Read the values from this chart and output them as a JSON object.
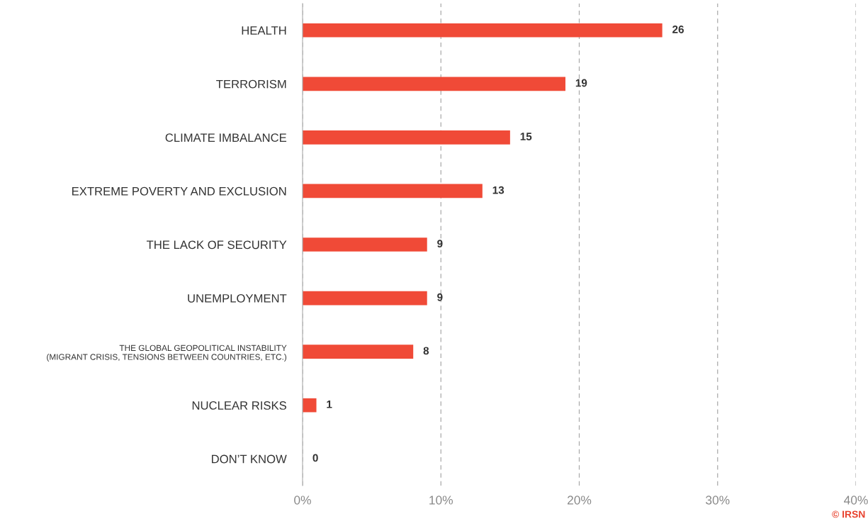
{
  "chart_data": {
    "type": "bar",
    "orientation": "horizontal",
    "categories": [
      "HEALTH",
      "TERRORISM",
      "CLIMATE IMBALANCE",
      "EXTREME POVERTY AND EXCLUSION",
      "THE LACK OF SECURITY",
      "UNEMPLOYMENT",
      "THE GLOBAL GEOPOLITICAL INSTABILITY\n(MIGRANT CRISIS, TENSIONS BETWEEN COUNTRIES, ETC.)",
      "NUCLEAR RISKS",
      "DON’T KNOW"
    ],
    "values": [
      26,
      19,
      15,
      13,
      9,
      9,
      8,
      1,
      0
    ],
    "color": "#f04a37",
    "data_labels": true,
    "xlim": [
      0,
      40
    ],
    "xticks": [
      {
        "value": 0,
        "label": "0%"
      },
      {
        "value": 10,
        "label": "10%"
      },
      {
        "value": 20,
        "label": "20%"
      },
      {
        "value": 30,
        "label": "30%"
      },
      {
        "value": 40,
        "label": "40%"
      }
    ],
    "grid": "x",
    "annotations": [
      "© IRSN"
    ]
  }
}
